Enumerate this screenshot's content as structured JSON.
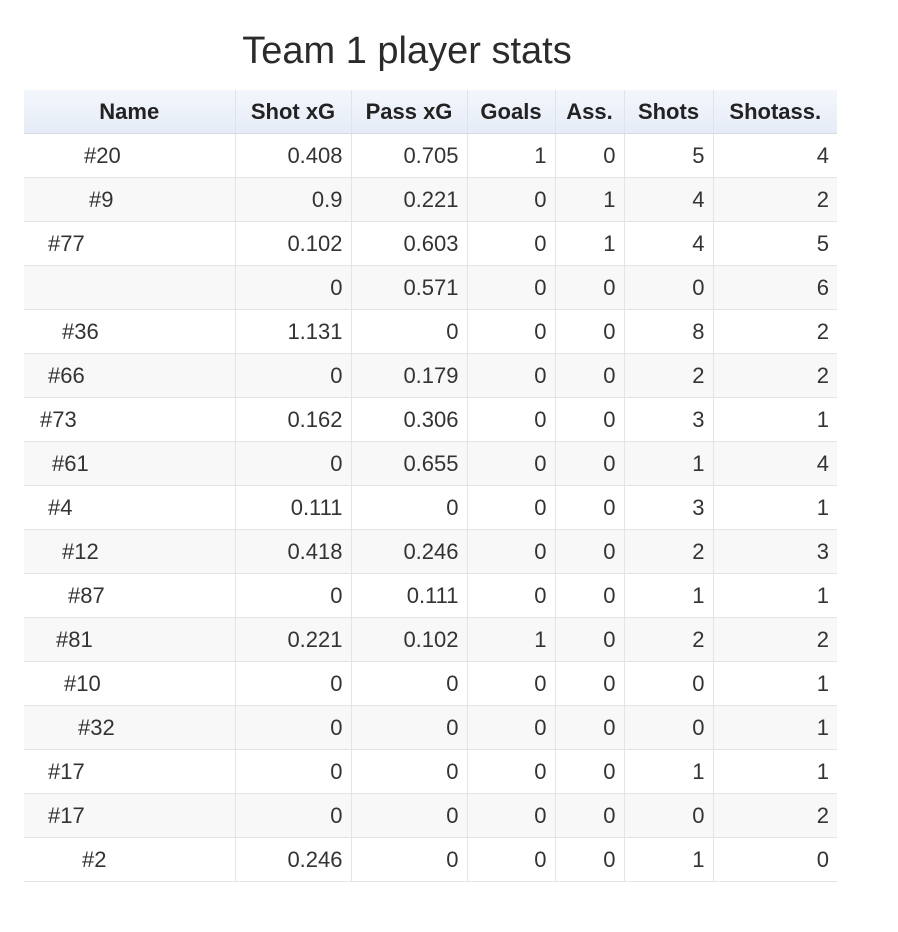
{
  "chart_data": {
    "type": "table",
    "title": "Team 1 player stats",
    "columns": [
      "Name",
      "Shot xG",
      "Pass xG",
      "Goals",
      "Ass.",
      "Shots",
      "Shotass."
    ],
    "rows": [
      {
        "name": "#20",
        "values": [
          "0.408",
          "0.705",
          "1",
          "0",
          "5",
          "4"
        ]
      },
      {
        "name": "#9",
        "values": [
          "0.9",
          "0.221",
          "0",
          "1",
          "4",
          "2"
        ]
      },
      {
        "name": "#77",
        "values": [
          "0.102",
          "0.603",
          "0",
          "1",
          "4",
          "5"
        ]
      },
      {
        "name": "",
        "values": [
          "0",
          "0.571",
          "0",
          "0",
          "0",
          "6"
        ]
      },
      {
        "name": "#36",
        "values": [
          "1.131",
          "0",
          "0",
          "0",
          "8",
          "2"
        ]
      },
      {
        "name": "#66",
        "values": [
          "0",
          "0.179",
          "0",
          "0",
          "2",
          "2"
        ]
      },
      {
        "name": "#73",
        "values": [
          "0.162",
          "0.306",
          "0",
          "0",
          "3",
          "1"
        ]
      },
      {
        "name": "#61",
        "values": [
          "0",
          "0.655",
          "0",
          "0",
          "1",
          "4"
        ]
      },
      {
        "name": "#4",
        "values": [
          "0.111",
          "0",
          "0",
          "0",
          "3",
          "1"
        ]
      },
      {
        "name": "#12",
        "values": [
          "0.418",
          "0.246",
          "0",
          "0",
          "2",
          "3"
        ]
      },
      {
        "name": "#87",
        "values": [
          "0",
          "0.111",
          "0",
          "0",
          "1",
          "1"
        ]
      },
      {
        "name": "#81",
        "values": [
          "0.221",
          "0.102",
          "1",
          "0",
          "2",
          "2"
        ]
      },
      {
        "name": "#10",
        "values": [
          "0",
          "0",
          "0",
          "0",
          "0",
          "1"
        ]
      },
      {
        "name": "#32",
        "values": [
          "0",
          "0",
          "0",
          "0",
          "0",
          "1"
        ]
      },
      {
        "name": "#17",
        "values": [
          "0",
          "0",
          "0",
          "0",
          "1",
          "1"
        ]
      },
      {
        "name": "#17",
        "values": [
          "0",
          "0",
          "0",
          "0",
          "0",
          "2"
        ]
      },
      {
        "name": "#2",
        "values": [
          "0.246",
          "0",
          "0",
          "0",
          "1",
          "0"
        ]
      }
    ]
  }
}
